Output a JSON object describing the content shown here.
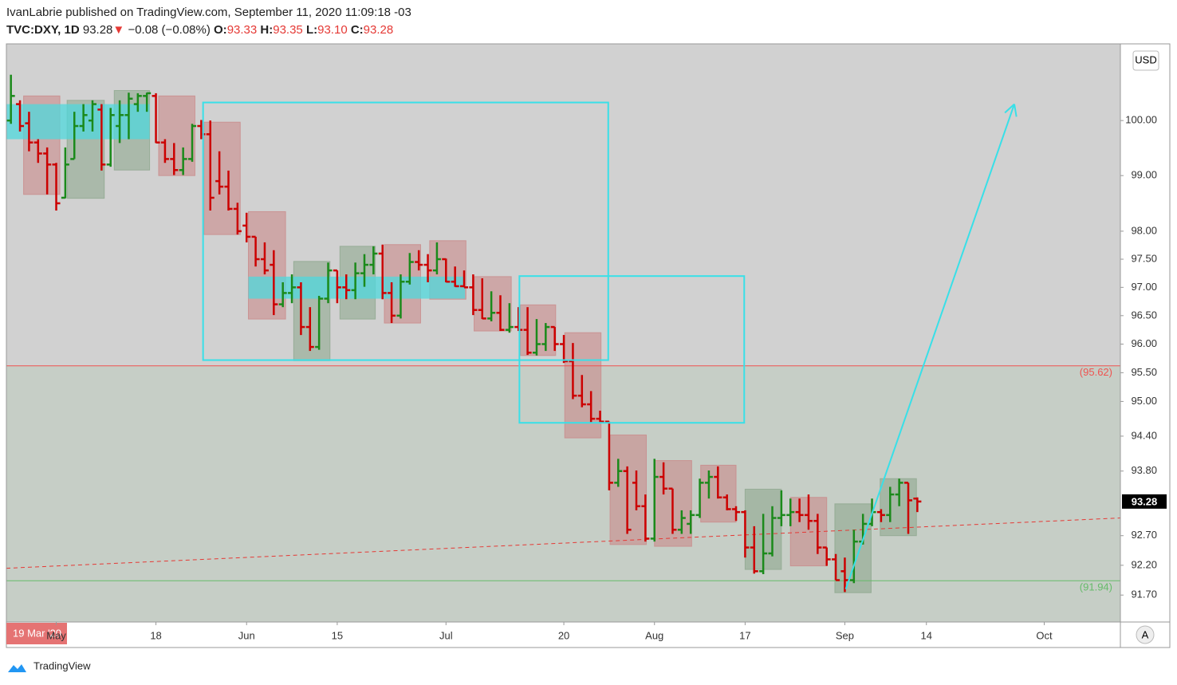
{
  "header": {
    "line1": "IvanLabrie published on TradingView.com, September 11, 2020 11:09:18 -03",
    "symbol": "TVC:DXY, 1D",
    "last": "93.28",
    "arrow": "▼",
    "change": "−0.08 (−0.08%)",
    "o_label": "O:",
    "o": "93.33",
    "h_label": "H:",
    "h": "93.35",
    "l_label": "L:",
    "l": "93.10",
    "c_label": "C:",
    "c": "93.28"
  },
  "footer": {
    "brand": "TradingView",
    "cursor_date": "19 Mar '20",
    "auto": "A"
  },
  "chart_data": {
    "type": "ohlc",
    "currency": "USD",
    "log_scale": true,
    "up_color": "#1b8a1b",
    "down_color": "#cc0000",
    "xlim": [
      -0.5,
      122.4
    ],
    "xticks": [
      {
        "value": 5,
        "label": "May"
      },
      {
        "value": 16,
        "label": "18"
      },
      {
        "value": 26,
        "label": "Jun"
      },
      {
        "value": 36,
        "label": "15"
      },
      {
        "value": 48,
        "label": "Jul"
      },
      {
        "value": 61,
        "label": "20"
      },
      {
        "value": 71,
        "label": "Aug"
      },
      {
        "value": 81,
        "label": "17"
      },
      {
        "value": 92,
        "label": "Sep"
      },
      {
        "value": 101,
        "label": "14"
      },
      {
        "value": 114,
        "label": "Oct"
      }
    ],
    "ylim": [
      91.25,
      101.41
    ],
    "yticks": [
      {
        "value": 91.7,
        "label": "91.70"
      },
      {
        "value": 92.2,
        "label": "92.20"
      },
      {
        "value": 92.7,
        "label": "92.70"
      },
      {
        "value": 93.8,
        "label": "93.80"
      },
      {
        "value": 94.4,
        "label": "94.40"
      },
      {
        "value": 95,
        "label": "95.00"
      },
      {
        "value": 95.5,
        "label": "95.50"
      },
      {
        "value": 96,
        "label": "96.00"
      },
      {
        "value": 96.5,
        "label": "96.50"
      },
      {
        "value": 97,
        "label": "97.00"
      },
      {
        "value": 97.5,
        "label": "97.50"
      },
      {
        "value": 98,
        "label": "98.00"
      },
      {
        "value": 99,
        "label": "99.00"
      },
      {
        "value": 100,
        "label": "100.00"
      }
    ],
    "last_price": 93.28,
    "x": [
      0,
      1,
      2,
      3,
      4,
      5,
      6,
      7,
      8,
      9,
      10,
      11,
      12,
      13,
      14,
      15,
      16,
      17,
      18,
      19,
      20,
      21,
      22,
      23,
      24,
      25,
      26,
      27,
      28,
      29,
      30,
      31,
      32,
      33,
      34,
      35,
      36,
      37,
      38,
      39,
      40,
      41,
      42,
      43,
      44,
      45,
      46,
      47,
      48,
      49,
      50,
      51,
      52,
      53,
      54,
      55,
      56,
      57,
      58,
      59,
      60,
      61,
      62,
      63,
      64,
      65,
      66,
      67,
      68,
      69,
      70,
      71,
      72,
      73,
      74,
      75,
      76,
      77,
      78,
      79,
      80,
      81,
      82,
      83,
      84,
      85,
      86,
      87,
      88,
      89,
      90,
      91,
      92,
      93,
      94,
      95,
      96,
      97,
      98,
      99,
      100
    ],
    "ohlc": [
      [
        100.0,
        100.84,
        99.94,
        100.45
      ],
      [
        100.3,
        100.37,
        99.8,
        99.9
      ],
      [
        99.95,
        100.16,
        99.44,
        99.6
      ],
      [
        99.6,
        99.66,
        99.23,
        99.4
      ],
      [
        99.4,
        99.51,
        98.66,
        99.2
      ],
      [
        99.2,
        99.23,
        98.37,
        98.5
      ],
      [
        98.6,
        99.51,
        98.59,
        99.2
      ],
      [
        99.3,
        100.16,
        99.3,
        99.9
      ],
      [
        99.9,
        100.3,
        99.8,
        100.1
      ],
      [
        100.0,
        100.37,
        99.8,
        100.3
      ],
      [
        100.2,
        100.3,
        99.09,
        99.2
      ],
      [
        99.2,
        100.23,
        99.16,
        100.1
      ],
      [
        99.9,
        100.37,
        99.59,
        100.1
      ],
      [
        100.1,
        100.51,
        99.66,
        100.4
      ],
      [
        100.3,
        100.5,
        100.16,
        100.45
      ],
      [
        100.45,
        100.51,
        100.16,
        100.5
      ],
      [
        100.45,
        100.5,
        99.59,
        99.6
      ],
      [
        99.6,
        99.66,
        99.23,
        99.3
      ],
      [
        99.3,
        99.59,
        99.01,
        99.1
      ],
      [
        99.1,
        99.51,
        99.01,
        99.3
      ],
      [
        99.3,
        99.94,
        99.25,
        99.9
      ],
      [
        99.9,
        100.01,
        99.66,
        99.75
      ],
      [
        99.75,
        100.0,
        98.37,
        98.6
      ],
      [
        98.9,
        99.44,
        98.66,
        98.8
      ],
      [
        98.8,
        99.09,
        98.37,
        98.4
      ],
      [
        98.4,
        98.51,
        97.94,
        98.0
      ],
      [
        98.1,
        98.33,
        97.8,
        97.9
      ],
      [
        97.9,
        97.9,
        97.37,
        97.5
      ],
      [
        97.5,
        97.8,
        97.23,
        97.3
      ],
      [
        97.4,
        97.66,
        96.51,
        96.7
      ],
      [
        96.7,
        97.09,
        96.65,
        96.9
      ],
      [
        96.9,
        97.23,
        96.72,
        97.0
      ],
      [
        97.0,
        97.09,
        96.16,
        96.3
      ],
      [
        96.3,
        96.65,
        95.88,
        95.95
      ],
      [
        95.95,
        96.85,
        95.9,
        96.8
      ],
      [
        96.8,
        97.44,
        96.72,
        97.3
      ],
      [
        97.3,
        97.3,
        96.72,
        97.0
      ],
      [
        97.0,
        97.23,
        96.79,
        96.95
      ],
      [
        96.95,
        97.44,
        96.79,
        97.25
      ],
      [
        97.25,
        97.59,
        97.01,
        97.4
      ],
      [
        97.4,
        97.73,
        97.23,
        97.6
      ],
      [
        97.6,
        97.76,
        96.79,
        96.9
      ],
      [
        96.9,
        97.09,
        96.37,
        96.5
      ],
      [
        96.5,
        97.23,
        96.45,
        97.1
      ],
      [
        97.1,
        97.61,
        97.05,
        97.45
      ],
      [
        97.45,
        97.66,
        97.3,
        97.4
      ],
      [
        97.4,
        97.59,
        97.09,
        97.3
      ],
      [
        97.3,
        97.8,
        97.23,
        97.5
      ],
      [
        97.5,
        97.51,
        97.09,
        97.1
      ],
      [
        97.1,
        97.37,
        97.01,
        97.02
      ],
      [
        97.02,
        97.3,
        97.0,
        97.0
      ],
      [
        97.0,
        97.23,
        96.51,
        96.6
      ],
      [
        96.6,
        97.16,
        96.44,
        96.45
      ],
      [
        96.45,
        96.93,
        96.4,
        96.55
      ],
      [
        96.55,
        96.86,
        96.23,
        96.25
      ],
      [
        96.25,
        96.72,
        96.2,
        96.3
      ],
      [
        96.3,
        96.65,
        96.23,
        96.25
      ],
      [
        96.25,
        96.65,
        95.81,
        95.85
      ],
      [
        95.85,
        96.44,
        95.8,
        96.0
      ],
      [
        96.0,
        96.37,
        95.88,
        96.3
      ],
      [
        96.3,
        96.3,
        95.88,
        96.0
      ],
      [
        96.0,
        96.16,
        95.67,
        95.7
      ],
      [
        95.7,
        96.02,
        95.04,
        95.1
      ],
      [
        95.1,
        95.46,
        94.9,
        94.95
      ],
      [
        94.95,
        95.18,
        94.63,
        94.7
      ],
      [
        94.7,
        94.84,
        94.63,
        94.65
      ],
      [
        94.65,
        94.65,
        93.47,
        93.6
      ],
      [
        93.6,
        94.01,
        93.53,
        93.8
      ],
      [
        93.8,
        93.88,
        92.73,
        92.8
      ],
      [
        93.6,
        93.81,
        93.13,
        93.2
      ],
      [
        93.2,
        93.4,
        92.6,
        92.65
      ],
      [
        92.65,
        94.01,
        92.6,
        93.7
      ],
      [
        93.7,
        93.95,
        93.4,
        93.5
      ],
      [
        93.5,
        93.5,
        92.73,
        92.8
      ],
      [
        92.8,
        93.13,
        92.73,
        93.0
      ],
      [
        92.9,
        93.13,
        92.73,
        93.05
      ],
      [
        93.05,
        93.67,
        93.0,
        93.6
      ],
      [
        93.6,
        93.81,
        93.33,
        93.7
      ],
      [
        93.7,
        93.88,
        93.33,
        93.35
      ],
      [
        93.35,
        93.4,
        93.13,
        93.15
      ],
      [
        93.15,
        93.2,
        92.95,
        93.1
      ],
      [
        93.1,
        93.13,
        92.33,
        92.5
      ],
      [
        92.5,
        92.86,
        92.06,
        92.1
      ],
      [
        92.1,
        93.07,
        92.05,
        92.4
      ],
      [
        92.4,
        93.2,
        92.35,
        93.0
      ],
      [
        93.0,
        93.47,
        92.86,
        93.05
      ],
      [
        93.05,
        93.33,
        92.86,
        93.1
      ],
      [
        93.1,
        93.33,
        92.93,
        93.05
      ],
      [
        93.05,
        93.4,
        92.8,
        92.95
      ],
      [
        92.95,
        93.07,
        92.39,
        92.5
      ],
      [
        92.5,
        92.5,
        92.19,
        92.3
      ],
      [
        92.3,
        92.39,
        91.95,
        91.95
      ],
      [
        92.1,
        92.33,
        91.75,
        91.95
      ],
      [
        91.95,
        92.8,
        91.9,
        92.6
      ],
      [
        92.6,
        93.07,
        92.55,
        92.9
      ],
      [
        92.9,
        93.33,
        92.86,
        93.1
      ],
      [
        93.1,
        93.15,
        92.93,
        93.05
      ],
      [
        93.05,
        93.53,
        92.93,
        93.4
      ],
      [
        93.4,
        93.67,
        93.2,
        93.6
      ],
      [
        93.6,
        93.6,
        92.73,
        93.3
      ],
      [
        93.33,
        93.35,
        93.1,
        93.28
      ]
    ],
    "hlines": [
      {
        "value": 95.62,
        "label": "(95.62)",
        "color": "#ef5350",
        "fill_below": "#c6cec6"
      },
      {
        "value": 91.94,
        "label": "(91.94)",
        "color": "#66bb6a"
      }
    ],
    "zones": [
      {
        "x": [
          1.4,
          5.4
        ],
        "y": [
          98.66,
          100.45
        ],
        "color": "#c98a8a"
      },
      {
        "x": [
          6.2,
          10.3
        ],
        "y": [
          98.59,
          100.37
        ],
        "color": "#8fa88f"
      },
      {
        "x": [
          11.4,
          15.3
        ],
        "y": [
          99.1,
          100.55
        ],
        "color": "#8fa88f"
      },
      {
        "x": [
          16.3,
          20.3
        ],
        "y": [
          99.0,
          100.45
        ],
        "color": "#c98a8a"
      },
      {
        "x": [
          21.3,
          25.3
        ],
        "y": [
          97.94,
          99.97
        ],
        "color": "#c98a8a"
      },
      {
        "x": [
          26.2,
          30.3
        ],
        "y": [
          96.44,
          98.35
        ],
        "color": "#c98a8a"
      },
      {
        "x": [
          31.2,
          35.2
        ],
        "y": [
          95.71,
          97.46
        ],
        "color": "#8fa88f"
      },
      {
        "x": [
          36.3,
          40.2
        ],
        "y": [
          96.44,
          97.73
        ],
        "color": "#8fa88f"
      },
      {
        "x": [
          41.2,
          45.2
        ],
        "y": [
          96.37,
          97.76
        ],
        "color": "#c98a8a"
      },
      {
        "x": [
          46.2,
          50.2
        ],
        "y": [
          96.79,
          97.83
        ],
        "color": "#c98a8a"
      },
      {
        "x": [
          51.1,
          55.2
        ],
        "y": [
          96.23,
          97.19
        ],
        "color": "#c98a8a"
      },
      {
        "x": [
          56.2,
          60.1
        ],
        "y": [
          95.8,
          96.69
        ],
        "color": "#c98a8a"
      },
      {
        "x": [
          61.1,
          65.1
        ],
        "y": [
          94.37,
          96.2
        ],
        "color": "#c98a8a"
      },
      {
        "x": [
          66.1,
          70.1
        ],
        "y": [
          92.55,
          94.42
        ],
        "color": "#c98a8a"
      },
      {
        "x": [
          71.0,
          75.1
        ],
        "y": [
          92.52,
          93.98
        ],
        "color": "#c98a8a"
      },
      {
        "x": [
          76.1,
          80.0
        ],
        "y": [
          92.93,
          93.9
        ],
        "color": "#c98a8a"
      },
      {
        "x": [
          81.0,
          85.0
        ],
        "y": [
          92.13,
          93.49
        ],
        "color": "#8fa88f"
      },
      {
        "x": [
          86.0,
          90.0
        ],
        "y": [
          92.19,
          93.35
        ],
        "color": "#c98a8a"
      },
      {
        "x": [
          90.9,
          94.9
        ],
        "y": [
          91.74,
          93.24
        ],
        "color": "#8fa88f"
      },
      {
        "x": [
          95.9,
          99.9
        ],
        "y": [
          92.7,
          93.67
        ],
        "color": "#8fa88f"
      }
    ],
    "bands": [
      {
        "x": [
          -0.5,
          15.3
        ],
        "y": [
          99.66,
          100.3
        ],
        "color": "#4fd8dc"
      },
      {
        "x": [
          26.2,
          50.1
        ],
        "y": [
          96.8,
          97.19
        ],
        "color": "#4fd8dc"
      }
    ],
    "boxes": [
      {
        "x": [
          21.2,
          65.9
        ],
        "y": [
          95.72,
          100.33
        ],
        "color": "#38e0e8"
      },
      {
        "x": [
          56.1,
          80.9
        ],
        "y": [
          94.63,
          97.2
        ],
        "color": "#38e0e8"
      }
    ],
    "trendline": {
      "x": [
        -0.5,
        122.4
      ],
      "y": [
        92.15,
        93.0
      ],
      "color": "#e53935"
    },
    "arrow": {
      "x": [
        92.1,
        110.7
      ],
      "y": [
        91.8,
        100.3
      ],
      "color": "#38e0e8"
    }
  }
}
